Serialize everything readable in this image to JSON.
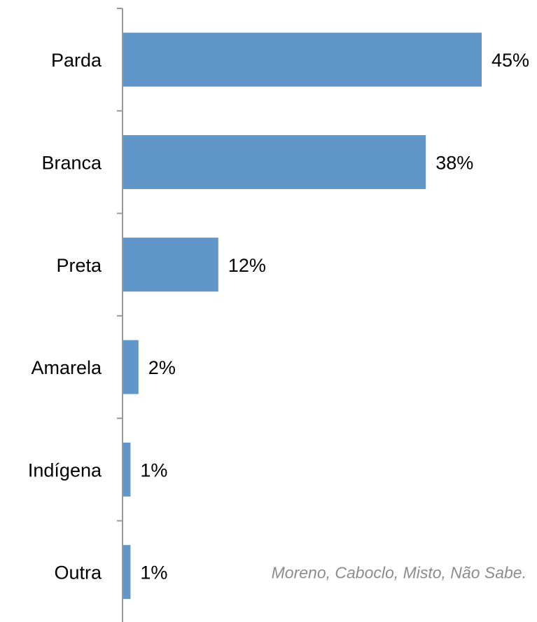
{
  "chart_data": {
    "type": "bar",
    "orientation": "horizontal",
    "categories": [
      "Parda",
      "Branca",
      "Preta",
      "Amarela",
      "Indígena",
      "Outra"
    ],
    "values": [
      45,
      38,
      12,
      2,
      1,
      1
    ],
    "value_labels": [
      "45%",
      "38%",
      "12%",
      "2%",
      "1%",
      "1%"
    ],
    "unit": "%",
    "xlim": [
      0,
      45
    ],
    "grid": false,
    "legend": "none",
    "bar_color": "#6096c8",
    "annotation": "Moreno, Caboclo, Misto, Não Sabe."
  }
}
